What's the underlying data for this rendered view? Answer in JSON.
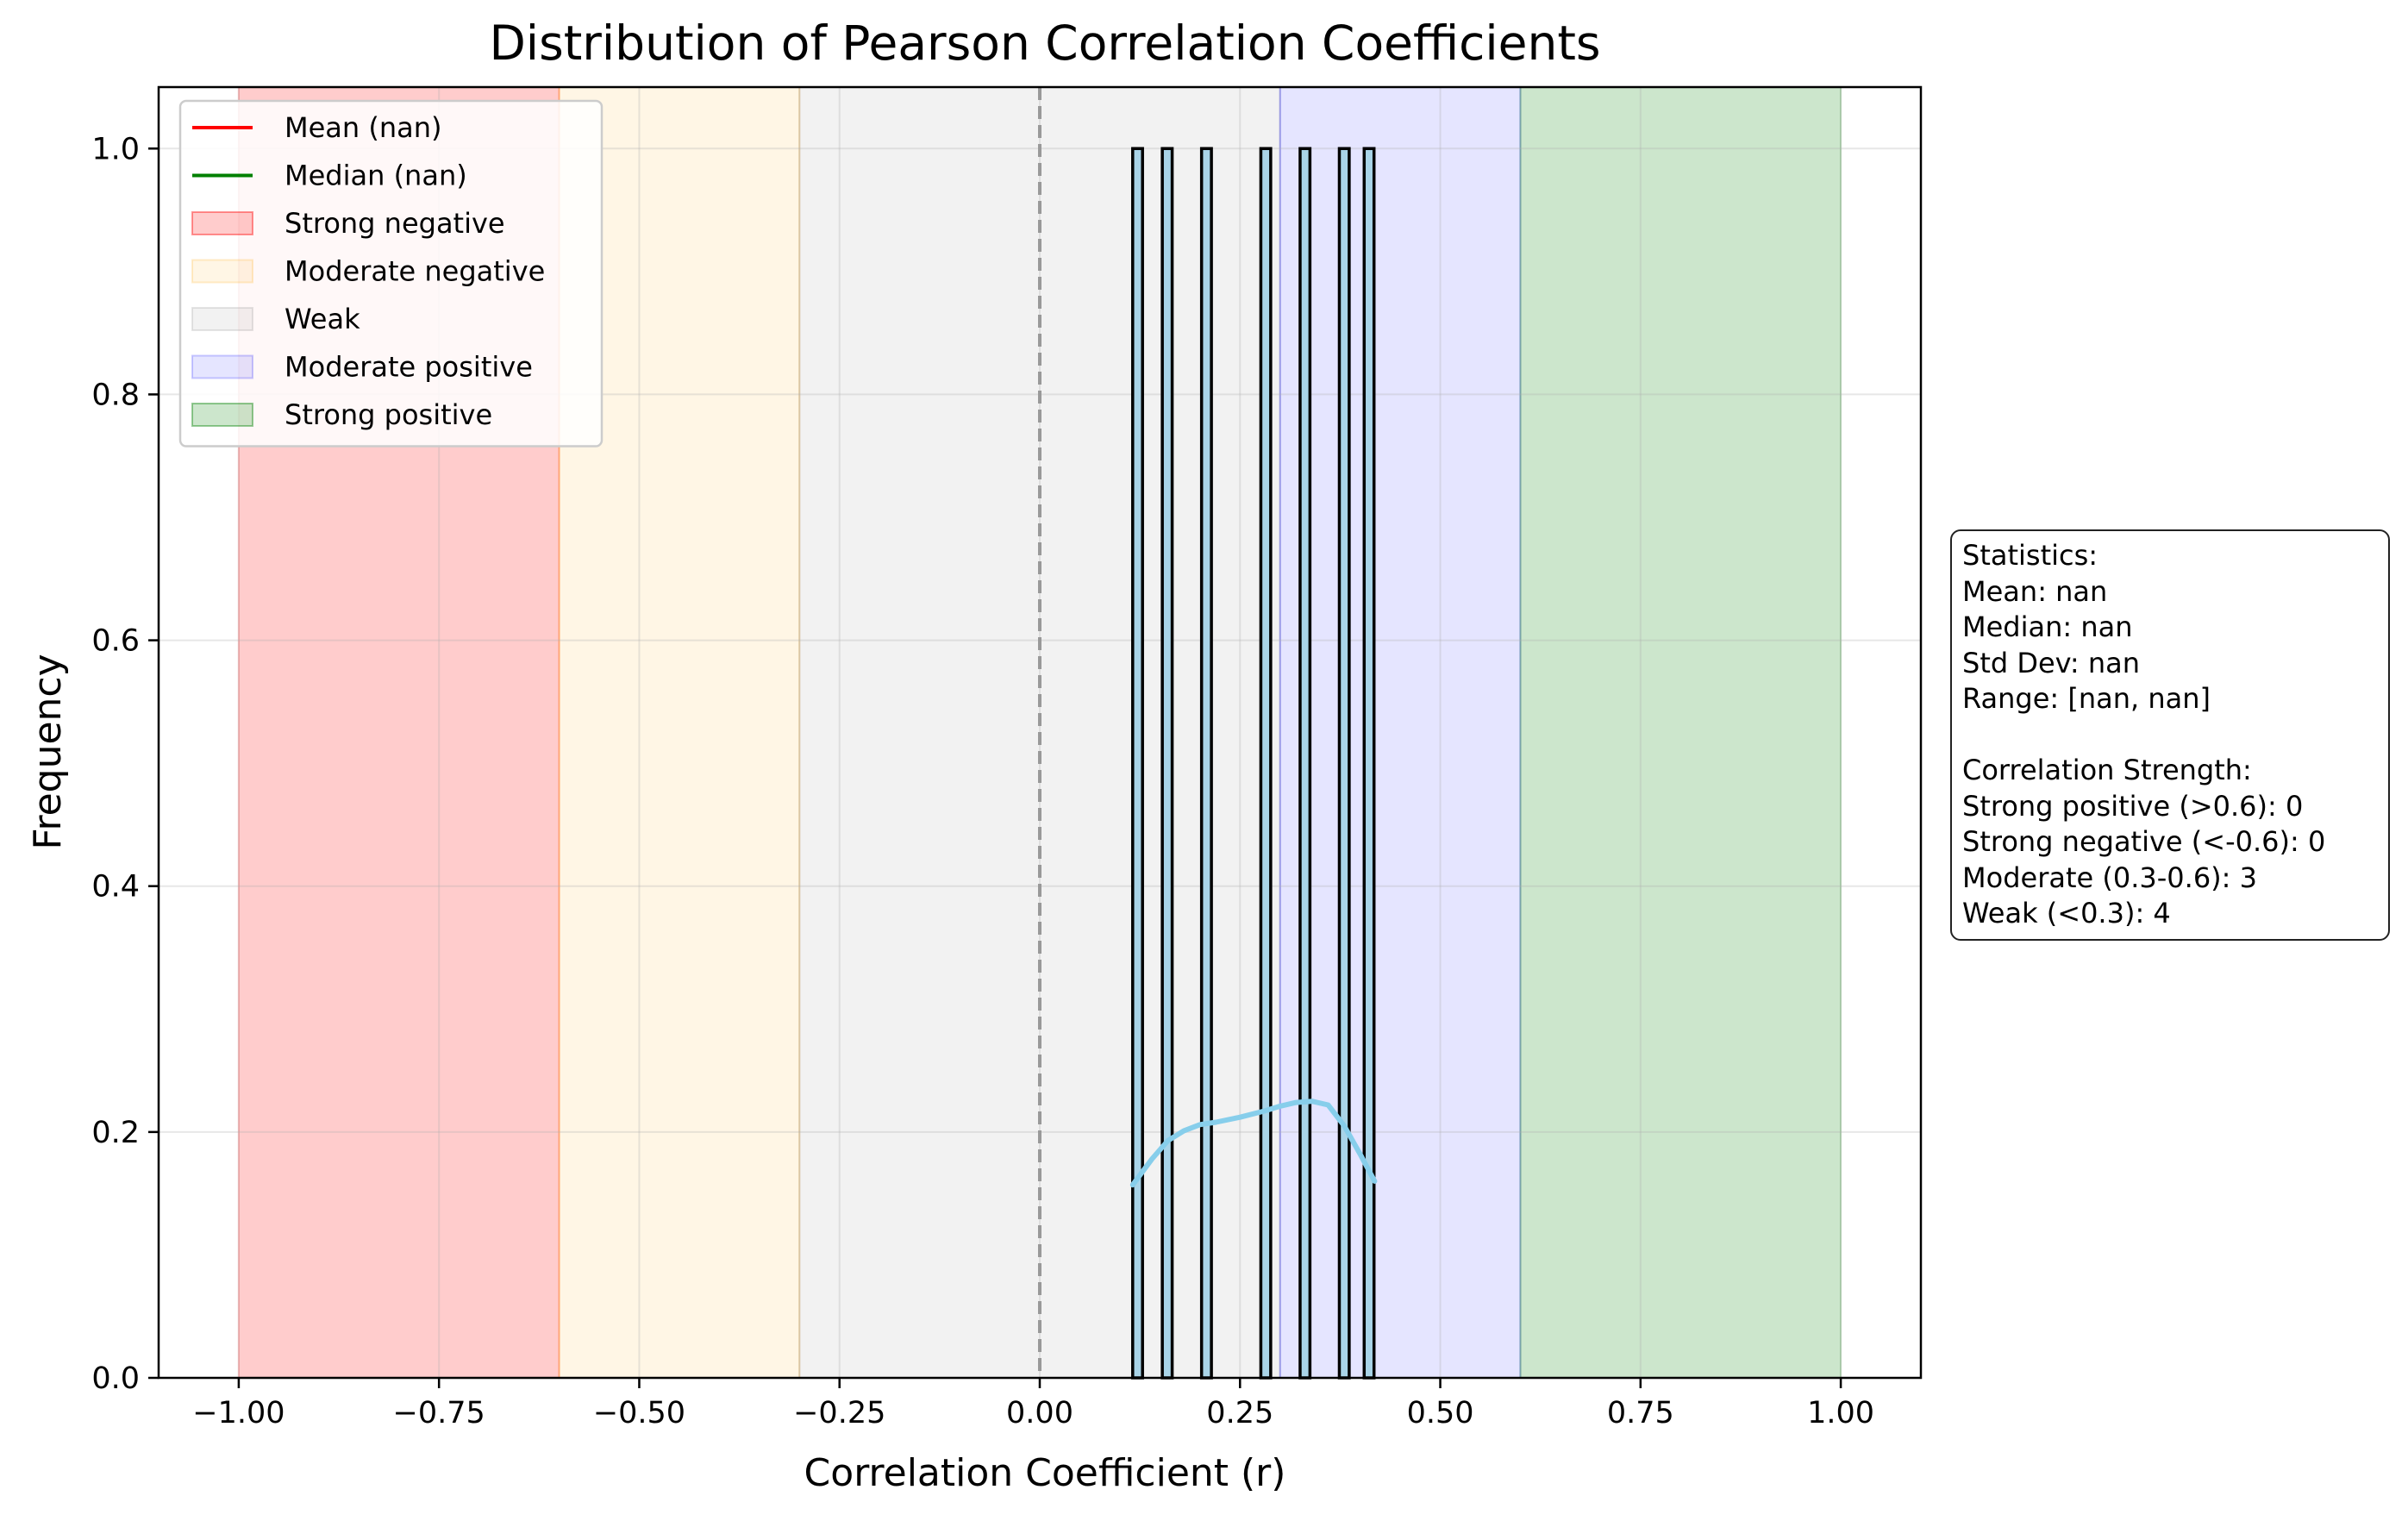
{
  "chart_data": {
    "type": "bar",
    "title": "Distribution of Pearson Correlation Coefficients",
    "xlabel": "Correlation Coefficient (r)",
    "ylabel": "Frequency",
    "xlim": [
      -1.1,
      1.1
    ],
    "ylim": [
      0,
      1.05
    ],
    "xticks": [
      -1.0,
      -0.75,
      -0.5,
      -0.25,
      0.0,
      0.25,
      0.5,
      0.75,
      1.0
    ],
    "xtick_labels": [
      "−1.00",
      "−0.75",
      "−0.50",
      "−0.25",
      "0.00",
      "0.25",
      "0.50",
      "0.75",
      "1.00"
    ],
    "yticks": [
      0.0,
      0.2,
      0.4,
      0.6,
      0.8,
      1.0
    ],
    "ytick_labels": [
      "0.0",
      "0.2",
      "0.4",
      "0.6",
      "0.8",
      "1.0"
    ],
    "grid": true,
    "legend_placement": "top-left",
    "bin_width": 0.0123,
    "bars": [
      {
        "x_start": 0.116,
        "value": 1
      },
      {
        "x_start": 0.153,
        "value": 1
      },
      {
        "x_start": 0.202,
        "value": 1
      },
      {
        "x_start": 0.276,
        "value": 1
      },
      {
        "x_start": 0.325,
        "value": 1
      },
      {
        "x_start": 0.374,
        "value": 1
      },
      {
        "x_start": 0.405,
        "value": 1
      }
    ],
    "bar_color": "#a9d4e8",
    "kde": {
      "color": "#87ceeb",
      "x": [
        0.116,
        0.14,
        0.16,
        0.18,
        0.2,
        0.22,
        0.25,
        0.28,
        0.3,
        0.32,
        0.34,
        0.36,
        0.38,
        0.4,
        0.418
      ],
      "y": [
        0.157,
        0.178,
        0.193,
        0.201,
        0.206,
        0.208,
        0.212,
        0.217,
        0.221,
        0.224,
        0.225,
        0.222,
        0.205,
        0.182,
        0.16
      ]
    },
    "zero_line": {
      "x": 0,
      "color": "#999999"
    },
    "regions": [
      {
        "name": "Strong negative",
        "from": -1.0,
        "to": -0.6,
        "color": "#ff0000",
        "opacity": 0.2
      },
      {
        "name": "Moderate negative",
        "from": -0.6,
        "to": -0.3,
        "color": "#ffa500",
        "opacity": 0.1
      },
      {
        "name": "Weak",
        "from": -0.3,
        "to": 0.3,
        "color": "#808080",
        "opacity": 0.1
      },
      {
        "name": "Moderate positive",
        "from": 0.3,
        "to": 0.6,
        "color": "#0000ff",
        "opacity": 0.1
      },
      {
        "name": "Strong positive",
        "from": 0.6,
        "to": 1.0,
        "color": "#008000",
        "opacity": 0.2
      }
    ],
    "legend": [
      {
        "label": "Mean (nan)",
        "kind": "line",
        "color": "#ff0000"
      },
      {
        "label": "Median (nan)",
        "kind": "line",
        "color": "#008000"
      },
      {
        "label": "Strong negative",
        "kind": "patch",
        "color": "#ff0000",
        "opacity": 0.2
      },
      {
        "label": "Moderate negative",
        "kind": "patch",
        "color": "#ffa500",
        "opacity": 0.1
      },
      {
        "label": "Weak",
        "kind": "patch",
        "color": "#808080",
        "opacity": 0.1
      },
      {
        "label": "Moderate positive",
        "kind": "patch",
        "color": "#0000ff",
        "opacity": 0.1
      },
      {
        "label": "Strong positive",
        "kind": "patch",
        "color": "#008000",
        "opacity": 0.2
      }
    ]
  },
  "stats_box": {
    "lines": [
      "Statistics:",
      "Mean: nan",
      "Median: nan",
      "Std Dev: nan",
      "Range: [nan, nan]",
      "",
      "Correlation Strength:",
      "Strong positive (>0.6): 0",
      "Strong negative (<-0.6): 0",
      "Moderate (0.3-0.6): 3",
      "Weak (<0.3): 4"
    ]
  }
}
